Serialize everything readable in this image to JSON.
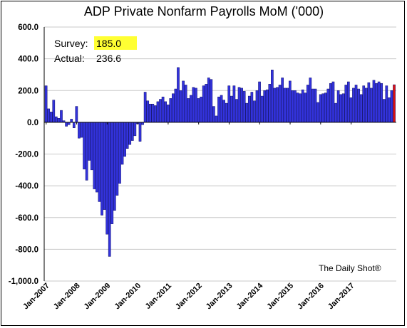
{
  "chart_data": {
    "type": "bar",
    "title": "ADP Private Nonfarm Payrolls MoM ('000)",
    "xlabel": "",
    "ylabel": "",
    "ylim": [
      -1000,
      600
    ],
    "y_ticks": [
      "600.0",
      "400.0",
      "200.0",
      "0.0",
      "-200.0",
      "-400.0",
      "-600.0",
      "-800.0",
      "-1,000.0"
    ],
    "x_ticks": [
      "Jan-2007",
      "Jan-2008",
      "Jan-2009",
      "Jan-2010",
      "Jan-2011",
      "Jan-2012",
      "Jan-2013",
      "Jan-2014",
      "Jan-2015",
      "Jan-2016",
      "Jan-2017"
    ],
    "grid": true,
    "start_month": "Jan-2007",
    "bar_color": "#3333dd",
    "last_bar_color": "#dd1111",
    "values": [
      230,
      85,
      65,
      140,
      35,
      25,
      75,
      10,
      -25,
      -15,
      20,
      -35,
      100,
      -100,
      -95,
      -295,
      -365,
      -240,
      -300,
      -420,
      -440,
      -500,
      -585,
      -550,
      -705,
      -845,
      -640,
      -555,
      -460,
      -385,
      -265,
      -215,
      -165,
      -140,
      -115,
      -85,
      -10,
      -120,
      -15,
      190,
      135,
      115,
      115,
      105,
      130,
      145,
      160,
      130,
      110,
      150,
      180,
      210,
      345,
      200,
      260,
      235,
      150,
      170,
      220,
      215,
      150,
      160,
      230,
      240,
      280,
      270,
      100,
      40,
      160,
      170,
      140,
      120,
      230,
      165,
      230,
      145,
      220,
      215,
      195,
      120,
      165,
      190,
      135,
      200,
      255,
      165,
      200,
      205,
      240,
      330,
      215,
      220,
      235,
      280,
      215,
      215,
      260,
      200,
      200,
      185,
      180,
      205,
      185,
      235,
      280,
      210,
      210,
      125,
      175,
      180,
      185,
      210,
      245,
      255,
      120,
      200,
      175,
      180,
      235,
      255,
      155,
      215,
      235,
      210,
      175,
      230,
      215,
      250,
      215,
      265,
      245,
      255,
      245,
      145,
      230,
      155,
      200,
      236.6
    ]
  },
  "annotation": {
    "survey_label": "Survey:",
    "survey_value": "185.0",
    "actual_label": "Actual:",
    "actual_value": "236.6",
    "highlight_color": "#ffff33"
  },
  "credit": "The Daily Shot®"
}
